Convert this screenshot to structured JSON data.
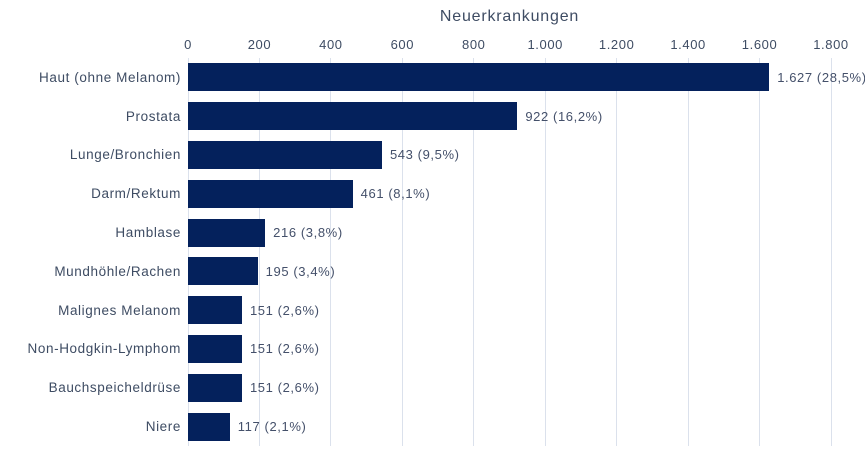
{
  "colors": {
    "bar": "#04215c",
    "text": "#3e4c63",
    "value_text": "#44506a",
    "grid": "#dbe1ec",
    "background": "#ffffff"
  },
  "chart_data": {
    "type": "bar",
    "orientation": "horizontal",
    "title": "Neuerkrankungen",
    "xlabel": "",
    "ylabel": "",
    "axis_position": "top",
    "grid": true,
    "xlim": [
      0,
      1800
    ],
    "x_ticks": [
      "0",
      "200",
      "400",
      "600",
      "800",
      "1.000",
      "1.200",
      "1.400",
      "1.600",
      "1.800"
    ],
    "categories": [
      "Haut (ohne Melanom)",
      "Prostata",
      "Lunge/Bronchien",
      "Darm/Rektum",
      "Hamblase",
      "Mundhöhle/Rachen",
      "Malignes Melanom",
      "Non-Hodgkin-Lymphom",
      "Bauchspeicheldrüse",
      "Niere"
    ],
    "values": [
      1627,
      922,
      543,
      461,
      216,
      195,
      151,
      151,
      151,
      117
    ],
    "value_labels": [
      "1.627 (28,5%)",
      "922 (16,2%)",
      "543 (9,5%)",
      "461 (8,1%)",
      "216 (3,8%)",
      "195 (3,4%)",
      "151 (2,6%)",
      "151 (2,6%)",
      "151 (2,6%)",
      "117 (2,1%)"
    ]
  }
}
